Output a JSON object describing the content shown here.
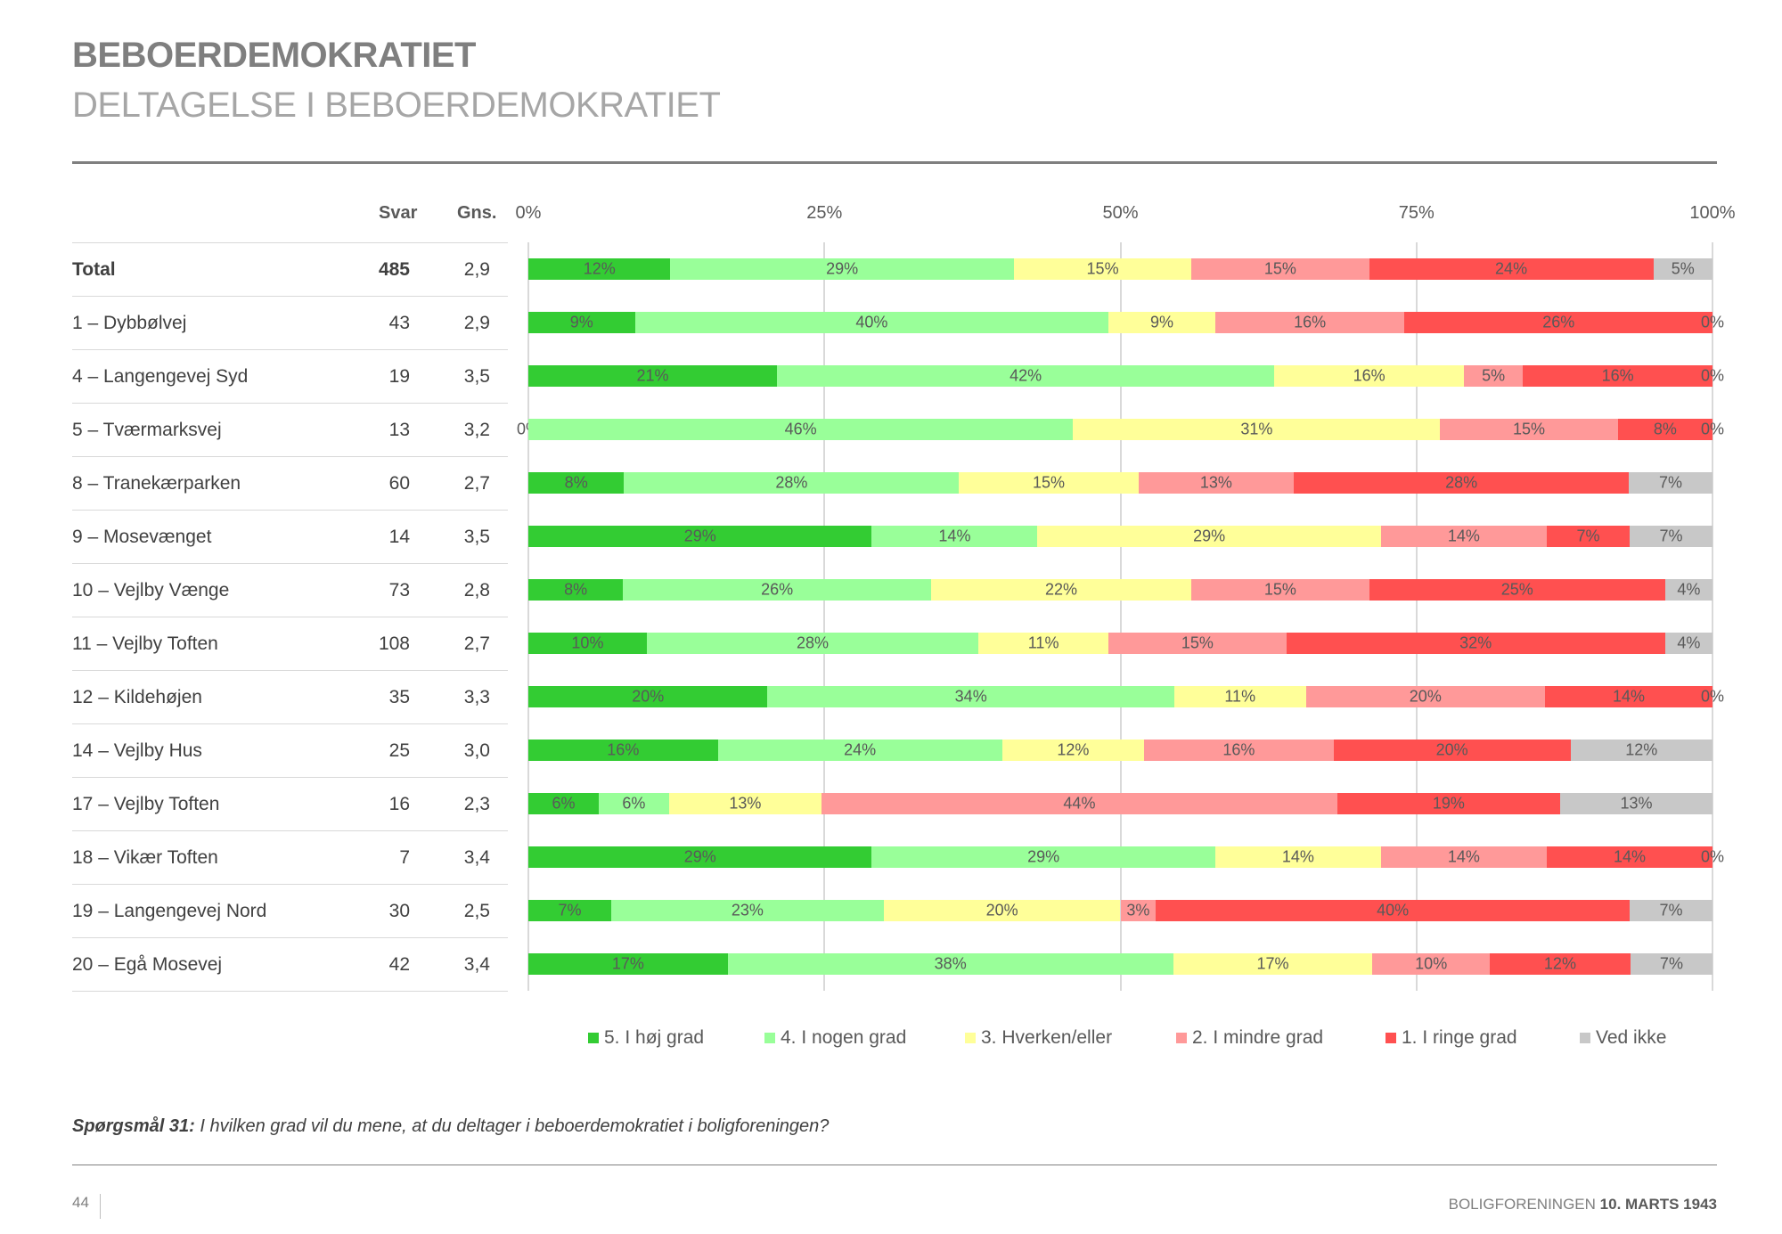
{
  "header": {
    "title": "BEBOERDEMOKRATIET",
    "subtitle": "DELTAGELSE I BEBOERDEMOKRATIET"
  },
  "table": {
    "col_svar": "Svar",
    "col_gns": "Gns."
  },
  "chart_data": {
    "type": "bar",
    "orientation": "horizontal-stacked-100",
    "axis_ticks": [
      "0%",
      "25%",
      "50%",
      "75%",
      "100%"
    ],
    "xlim": [
      0,
      100
    ],
    "grid": true,
    "legend_position": "bottom",
    "series_names": [
      "5. I høj grad",
      "4. I nogen grad",
      "3. Hverken/eller",
      "2. I mindre grad",
      "1. I ringe grad",
      "Ved ikke"
    ],
    "colors": [
      "#33CC33",
      "#99FF99",
      "#FFFF99",
      "#FF9999",
      "#FF5050",
      "#C8C8C8"
    ],
    "categories": [
      {
        "name": "Total",
        "svar": "485",
        "gns": "2,9",
        "values": [
          12,
          29,
          15,
          15,
          24,
          5
        ]
      },
      {
        "name": "1 – Dybbølvej",
        "svar": "43",
        "gns": "2,9",
        "values": [
          9,
          40,
          9,
          16,
          26,
          0
        ]
      },
      {
        "name": "4 – Langengevej Syd",
        "svar": "19",
        "gns": "3,5",
        "values": [
          21,
          42,
          16,
          5,
          16,
          0
        ]
      },
      {
        "name": "5 – Tværmarksvej",
        "svar": "13",
        "gns": "3,2",
        "values": [
          0,
          46,
          31,
          15,
          8,
          0
        ]
      },
      {
        "name": "8 – Tranekærparken",
        "svar": "60",
        "gns": "2,7",
        "values": [
          8,
          28,
          15,
          13,
          28,
          7
        ]
      },
      {
        "name": "9 – Mosevænget",
        "svar": "14",
        "gns": "3,5",
        "values": [
          29,
          14,
          29,
          14,
          7,
          7
        ]
      },
      {
        "name": "10 – Vejlby Vænge",
        "svar": "73",
        "gns": "2,8",
        "values": [
          8,
          26,
          22,
          15,
          25,
          4
        ]
      },
      {
        "name": "11 – Vejlby Toften",
        "svar": "108",
        "gns": "2,7",
        "values": [
          10,
          28,
          11,
          15,
          32,
          4
        ]
      },
      {
        "name": "12 – Kildehøjen",
        "svar": "35",
        "gns": "3,3",
        "values": [
          20,
          34,
          11,
          20,
          14,
          0
        ]
      },
      {
        "name": "14 – Vejlby Hus",
        "svar": "25",
        "gns": "3,0",
        "values": [
          16,
          24,
          12,
          16,
          20,
          12
        ]
      },
      {
        "name": "17 – Vejlby Toften",
        "svar": "16",
        "gns": "2,3",
        "values": [
          6,
          6,
          13,
          44,
          19,
          13
        ]
      },
      {
        "name": "18 – Vikær Toften",
        "svar": "7",
        "gns": "3,4",
        "values": [
          29,
          29,
          14,
          14,
          14,
          0
        ]
      },
      {
        "name": "19 – Langengevej Nord",
        "svar": "30",
        "gns": "2,5",
        "values": [
          7,
          23,
          20,
          3,
          40,
          7
        ]
      },
      {
        "name": "20 – Egå Mosevej",
        "svar": "42",
        "gns": "3,4",
        "values": [
          17,
          38,
          17,
          10,
          12,
          7
        ]
      }
    ]
  },
  "question": {
    "label": "Spørgsmål 31:",
    "text": " I hvilken grad vil du mene, at du deltager i beboerdemokratiet i boligforeningen?"
  },
  "footer": {
    "page": "44",
    "org": "BOLIGFORENINGEN ",
    "date": "10. MARTS 1943"
  }
}
